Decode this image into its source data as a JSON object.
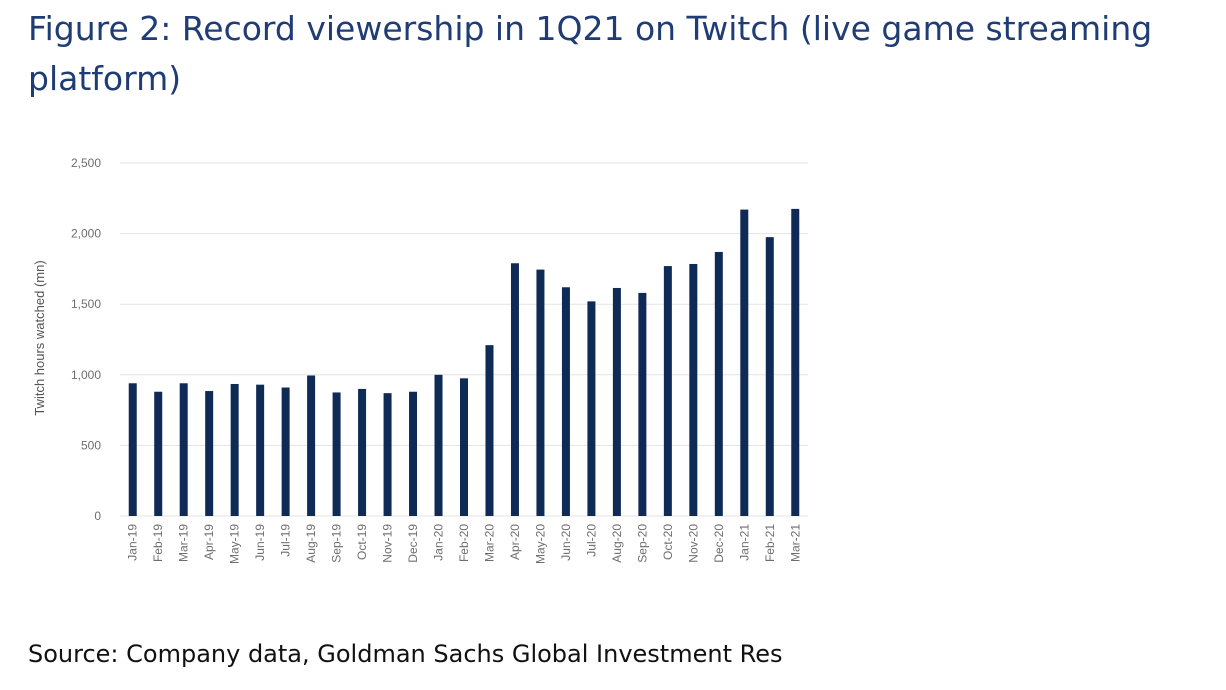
{
  "title": "Figure 2: Record viewership in 1Q21 on Twitch (live game streaming platform)",
  "source": "Source: Company data, Goldman Sachs Global Investment Res",
  "colors": {
    "bar": "#0f2a55",
    "grid": "#e3e3e3",
    "title": "#1f3c74"
  },
  "chart_data": {
    "type": "bar",
    "title": "",
    "xlabel": "",
    "ylabel": "Twitch hours watched (mn)",
    "ylim": [
      0,
      2500
    ],
    "yticks": [
      0,
      500,
      1000,
      1500,
      2000,
      2500
    ],
    "ytick_labels": [
      "0",
      "500",
      "1,000",
      "1,500",
      "2,000",
      "2,500"
    ],
    "grid": true,
    "legend": "none",
    "categories": [
      "Jan-19",
      "Feb-19",
      "Mar-19",
      "Apr-19",
      "May-19",
      "Jun-19",
      "Jul-19",
      "Aug-19",
      "Sep-19",
      "Oct-19",
      "Nov-19",
      "Dec-19",
      "Jan-20",
      "Feb-20",
      "Mar-20",
      "Apr-20",
      "May-20",
      "Jun-20",
      "Jul-20",
      "Aug-20",
      "Sep-20",
      "Oct-20",
      "Nov-20",
      "Dec-20",
      "Jan-21",
      "Feb-21",
      "Mar-21"
    ],
    "values": [
      940,
      880,
      940,
      885,
      935,
      930,
      910,
      995,
      875,
      900,
      870,
      880,
      1000,
      975,
      1210,
      1790,
      1745,
      1620,
      1520,
      1615,
      1580,
      1770,
      1785,
      1870,
      2170,
      1975,
      2175
    ]
  }
}
